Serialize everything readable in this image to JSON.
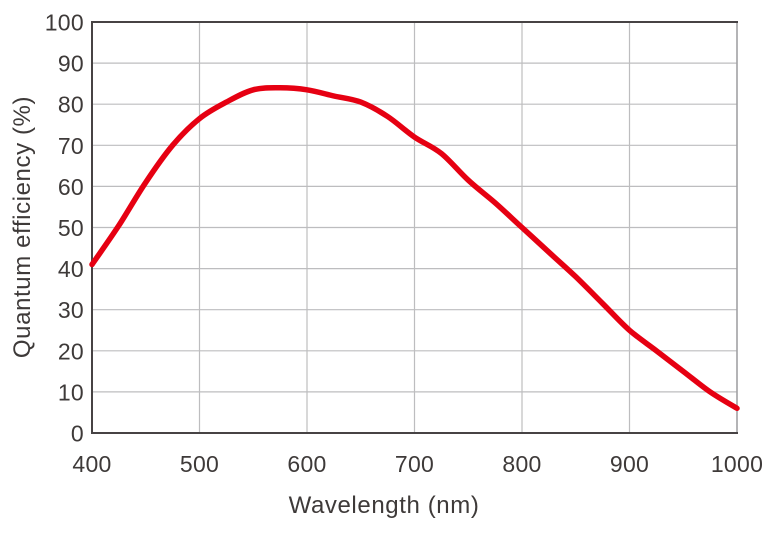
{
  "chart_data": {
    "type": "line",
    "title": "",
    "xlabel": "Wavelength (nm)",
    "ylabel": "Quantum efficiency (%)",
    "xlim": [
      400,
      1000
    ],
    "ylim": [
      0,
      100
    ],
    "x_ticks": [
      400,
      500,
      600,
      700,
      800,
      900,
      1000
    ],
    "y_ticks": [
      0,
      10,
      20,
      30,
      40,
      50,
      60,
      70,
      80,
      90,
      100
    ],
    "grid": true,
    "legend_position": "none",
    "series": [
      {
        "color": "#e60012",
        "x": [
          400,
          425,
          450,
          475,
          500,
          525,
          550,
          575,
          600,
          625,
          650,
          675,
          700,
          725,
          750,
          775,
          800,
          825,
          850,
          875,
          900,
          925,
          950,
          975,
          1000
        ],
        "y": [
          41,
          50.5,
          61,
          70,
          76.5,
          80.5,
          83.5,
          84,
          83.5,
          82,
          80.5,
          77,
          72,
          68,
          61.5,
          56,
          50,
          44,
          38,
          31.5,
          25,
          20,
          15,
          10,
          6
        ]
      }
    ]
  },
  "colors": {
    "curve": "#e60012",
    "axis": "#474344",
    "grid": "#bdbdbf",
    "border_right": "#a1a1a4",
    "text": "#3e3a39",
    "background": "#ffffff"
  }
}
